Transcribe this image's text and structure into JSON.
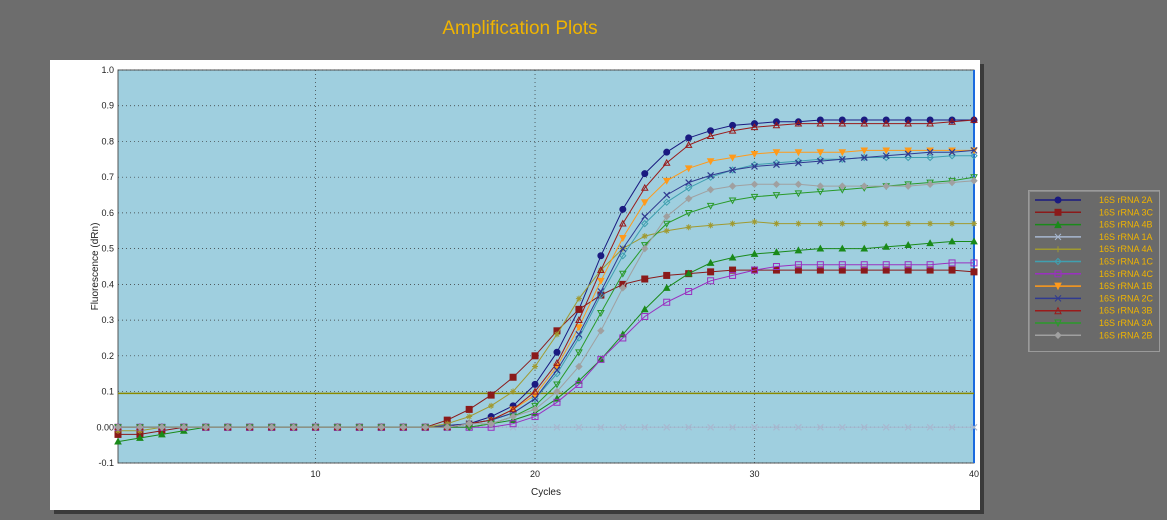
{
  "window": {
    "title": "Amplification Plots"
  },
  "colors": {
    "background": "#6d6d6d",
    "plot_area": "#9fcfdf",
    "title": "#f0b400",
    "threshold": "#8a8a00",
    "legend_text": "#f0b400"
  },
  "chart_data": {
    "type": "line",
    "title": "Amplification Plots",
    "xlabel": "Cycles",
    "ylabel": "Fluorescence (dRn)",
    "xlim": [
      1,
      40
    ],
    "ylim": [
      -0.1,
      1.0
    ],
    "x_ticks": [
      10,
      20,
      30,
      40
    ],
    "y_ticks": [
      "-0.1",
      "0.00",
      "0.1",
      "0.2",
      "0.3",
      "0.4",
      "0.5",
      "0.6",
      "0.7",
      "0.8",
      "0.9",
      "1.0"
    ],
    "grid": true,
    "legend_position": "right",
    "threshold": 0.095,
    "x": [
      1,
      2,
      3,
      4,
      5,
      6,
      7,
      8,
      9,
      10,
      11,
      12,
      13,
      14,
      15,
      16,
      17,
      18,
      19,
      20,
      21,
      22,
      23,
      24,
      25,
      26,
      27,
      28,
      29,
      30,
      31,
      32,
      33,
      34,
      35,
      36,
      37,
      38,
      39,
      40
    ],
    "series": [
      {
        "name": "16S rRNA 2A",
        "color": "#1a1a80",
        "marker": "circle",
        "values": [
          0.0,
          0.0,
          0.0,
          0.0,
          0.0,
          0.0,
          0.0,
          0.0,
          0.0,
          0.0,
          0.0,
          0.0,
          0.0,
          0.0,
          0.0,
          0.005,
          0.01,
          0.03,
          0.06,
          0.12,
          0.21,
          0.33,
          0.48,
          0.61,
          0.71,
          0.77,
          0.81,
          0.83,
          0.845,
          0.85,
          0.855,
          0.855,
          0.86,
          0.86,
          0.86,
          0.86,
          0.86,
          0.86,
          0.86,
          0.86
        ]
      },
      {
        "name": "16S rRNA 3C",
        "color": "#8b1a1a",
        "marker": "square",
        "values": [
          -0.02,
          -0.02,
          -0.01,
          0.0,
          0.0,
          0.0,
          0.0,
          0.0,
          0.0,
          0.0,
          0.0,
          0.0,
          0.0,
          0.0,
          0.0,
          0.02,
          0.05,
          0.09,
          0.14,
          0.2,
          0.27,
          0.33,
          0.37,
          0.4,
          0.415,
          0.425,
          0.43,
          0.435,
          0.44,
          0.44,
          0.44,
          0.44,
          0.44,
          0.44,
          0.44,
          0.44,
          0.44,
          0.44,
          0.44,
          0.435
        ]
      },
      {
        "name": "16S rRNA 4B",
        "color": "#1a8a1a",
        "marker": "triangle-up",
        "values": [
          -0.04,
          -0.03,
          -0.02,
          -0.01,
          0.0,
          0.0,
          0.0,
          0.0,
          0.0,
          0.0,
          0.0,
          0.0,
          0.0,
          0.0,
          0.0,
          0.0,
          0.0,
          0.01,
          0.02,
          0.04,
          0.08,
          0.13,
          0.19,
          0.26,
          0.33,
          0.39,
          0.43,
          0.46,
          0.475,
          0.485,
          0.49,
          0.495,
          0.5,
          0.5,
          0.5,
          0.505,
          0.51,
          0.515,
          0.52,
          0.52
        ]
      },
      {
        "name": "16S rRNA 1A",
        "color": "#a8b8d0",
        "marker": "x",
        "values": [
          0.0,
          0.0,
          0.0,
          0.0,
          0.0,
          0.0,
          0.0,
          0.0,
          0.0,
          0.0,
          0.0,
          0.0,
          0.0,
          0.0,
          0.0,
          0.0,
          0.0,
          0.0,
          0.0,
          0.0,
          0.0,
          0.0,
          0.0,
          0.0,
          0.0,
          0.0,
          0.0,
          0.0,
          0.0,
          0.0,
          0.0,
          0.0,
          0.0,
          0.0,
          0.0,
          0.0,
          0.0,
          0.0,
          0.0,
          0.0
        ]
      },
      {
        "name": "16S rRNA 4A",
        "color": "#a09a30",
        "marker": "star",
        "values": [
          -0.01,
          -0.01,
          0.0,
          0.0,
          0.0,
          0.0,
          0.0,
          0.0,
          0.0,
          0.0,
          0.0,
          0.0,
          0.0,
          0.0,
          0.0,
          0.01,
          0.03,
          0.06,
          0.1,
          0.17,
          0.26,
          0.36,
          0.44,
          0.5,
          0.535,
          0.55,
          0.56,
          0.565,
          0.57,
          0.575,
          0.57,
          0.57,
          0.57,
          0.57,
          0.57,
          0.57,
          0.57,
          0.57,
          0.57,
          0.57
        ]
      },
      {
        "name": "16S rRNA 1C",
        "color": "#40a0b0",
        "marker": "diamond-open",
        "values": [
          0.0,
          0.0,
          0.0,
          0.0,
          0.0,
          0.0,
          0.0,
          0.0,
          0.0,
          0.0,
          0.0,
          0.0,
          0.0,
          0.0,
          0.0,
          0.0,
          0.01,
          0.02,
          0.04,
          0.08,
          0.15,
          0.25,
          0.37,
          0.48,
          0.57,
          0.63,
          0.67,
          0.7,
          0.72,
          0.735,
          0.74,
          0.745,
          0.75,
          0.75,
          0.755,
          0.755,
          0.755,
          0.755,
          0.76,
          0.76
        ]
      },
      {
        "name": "16S rRNA 4C",
        "color": "#9a30c0",
        "marker": "square-open",
        "values": [
          0.0,
          0.0,
          0.0,
          0.0,
          0.0,
          0.0,
          0.0,
          0.0,
          0.0,
          0.0,
          0.0,
          0.0,
          0.0,
          0.0,
          0.0,
          0.0,
          0.0,
          0.0,
          0.01,
          0.03,
          0.07,
          0.12,
          0.19,
          0.25,
          0.31,
          0.35,
          0.38,
          0.41,
          0.425,
          0.44,
          0.45,
          0.455,
          0.455,
          0.455,
          0.455,
          0.455,
          0.455,
          0.455,
          0.46,
          0.46
        ]
      },
      {
        "name": "16S rRNA 1B",
        "color": "#ff9a1a",
        "marker": "triangle-down",
        "values": [
          0.0,
          0.0,
          0.0,
          0.0,
          0.0,
          0.0,
          0.0,
          0.0,
          0.0,
          0.0,
          0.0,
          0.0,
          0.0,
          0.0,
          0.0,
          0.0,
          0.01,
          0.02,
          0.05,
          0.09,
          0.17,
          0.28,
          0.41,
          0.53,
          0.63,
          0.69,
          0.725,
          0.745,
          0.755,
          0.765,
          0.77,
          0.77,
          0.77,
          0.77,
          0.775,
          0.775,
          0.775,
          0.775,
          0.775,
          0.775
        ]
      },
      {
        "name": "16S rRNA 2C",
        "color": "#303a90",
        "marker": "x",
        "values": [
          0.0,
          0.0,
          0.0,
          0.0,
          0.0,
          0.0,
          0.0,
          0.0,
          0.0,
          0.0,
          0.0,
          0.0,
          0.0,
          0.0,
          0.0,
          0.0,
          0.01,
          0.02,
          0.04,
          0.08,
          0.16,
          0.26,
          0.38,
          0.5,
          0.59,
          0.65,
          0.685,
          0.705,
          0.72,
          0.73,
          0.735,
          0.74,
          0.745,
          0.75,
          0.755,
          0.76,
          0.765,
          0.77,
          0.77,
          0.775
        ]
      },
      {
        "name": "16S rRNA 3B",
        "color": "#9a1a1a",
        "marker": "triangle-open",
        "values": [
          0.0,
          0.0,
          0.0,
          0.0,
          0.0,
          0.0,
          0.0,
          0.0,
          0.0,
          0.0,
          0.0,
          0.0,
          0.0,
          0.0,
          0.0,
          0.0,
          0.01,
          0.02,
          0.05,
          0.1,
          0.18,
          0.3,
          0.44,
          0.57,
          0.67,
          0.74,
          0.79,
          0.815,
          0.83,
          0.84,
          0.845,
          0.85,
          0.85,
          0.85,
          0.85,
          0.85,
          0.85,
          0.85,
          0.855,
          0.86
        ]
      },
      {
        "name": "16S rRNA 3A",
        "color": "#2a9a2a",
        "marker": "triangle-down-open",
        "values": [
          0.0,
          0.0,
          0.0,
          0.0,
          0.0,
          0.0,
          0.0,
          0.0,
          0.0,
          0.0,
          0.0,
          0.0,
          0.0,
          0.0,
          0.0,
          0.0,
          0.0,
          0.01,
          0.03,
          0.06,
          0.12,
          0.21,
          0.32,
          0.43,
          0.51,
          0.57,
          0.6,
          0.62,
          0.635,
          0.645,
          0.65,
          0.655,
          0.66,
          0.665,
          0.67,
          0.675,
          0.68,
          0.685,
          0.69,
          0.7
        ]
      },
      {
        "name": "16S rRNA 2B",
        "color": "#a0a0a0",
        "marker": "diamond",
        "values": [
          0.0,
          0.0,
          0.0,
          0.0,
          0.0,
          0.0,
          0.0,
          0.0,
          0.0,
          0.0,
          0.0,
          0.0,
          0.0,
          0.0,
          0.0,
          0.0,
          0.01,
          0.01,
          0.03,
          0.05,
          0.1,
          0.17,
          0.27,
          0.39,
          0.5,
          0.59,
          0.64,
          0.665,
          0.675,
          0.68,
          0.68,
          0.68,
          0.675,
          0.675,
          0.675,
          0.675,
          0.675,
          0.68,
          0.685,
          0.69
        ]
      }
    ]
  }
}
